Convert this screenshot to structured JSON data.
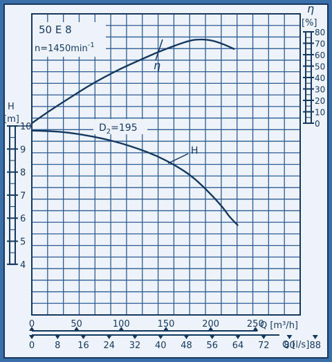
{
  "colors": {
    "background": "#3b6faa",
    "paper": "#edf3f9",
    "ink": "#15385f",
    "grid": "#2d5b93"
  },
  "chart_data": {
    "type": "line",
    "pump_model": "50 E 8",
    "speed_label": "n=1450min",
    "speed_exponent": "-1",
    "diameter_label": "D",
    "diameter_subscript": "2",
    "diameter_value": "=195",
    "head_axis": {
      "symbol": "H",
      "unit": "[m]",
      "range": [
        4,
        10
      ],
      "ticks": [
        "10",
        "9",
        "8",
        "7",
        "6",
        "5",
        "4"
      ]
    },
    "efficiency_axis": {
      "symbol": "η",
      "unit": "[%]",
      "range": [
        0,
        80
      ],
      "ticks": [
        "80",
        "70",
        "60",
        "50",
        "40",
        "30",
        "20",
        "10",
        "0"
      ]
    },
    "flow_m3h_axis": {
      "label": "Q [m³/h]",
      "range": [
        0,
        300
      ],
      "ticks": [
        "0",
        "50",
        "100",
        "150",
        "200",
        "250"
      ],
      "tick_values": [
        0,
        50,
        100,
        150,
        200,
        250
      ]
    },
    "flow_ls_axis": {
      "label": "Q [l/s]",
      "range": [
        0,
        93.3
      ],
      "ticks": [
        "0",
        "8",
        "16",
        "24",
        "32",
        "40",
        "48",
        "56",
        "64",
        "72",
        "80",
        "88"
      ],
      "tick_values": [
        0,
        8,
        16,
        24,
        32,
        40,
        48,
        56,
        64,
        72,
        80,
        88
      ]
    },
    "series": [
      {
        "name": "H",
        "axis": "head",
        "x": [
          0,
          20,
          40,
          60,
          80,
          100,
          120,
          140,
          160,
          180,
          200,
          215,
          220,
          230
        ],
        "y": [
          9.8,
          9.78,
          9.72,
          9.6,
          9.45,
          9.25,
          9.0,
          8.7,
          8.3,
          7.8,
          7.05,
          6.4,
          6.1,
          5.7
        ]
      },
      {
        "name": "η",
        "axis": "efficiency",
        "x": [
          0,
          20,
          40,
          60,
          80,
          100,
          120,
          140,
          160,
          175,
          185,
          200,
          215,
          226
        ],
        "y": [
          0,
          11,
          21,
          31,
          40,
          48,
          55,
          62,
          68,
          72,
          73.5,
          73,
          69,
          65
        ]
      }
    ]
  }
}
